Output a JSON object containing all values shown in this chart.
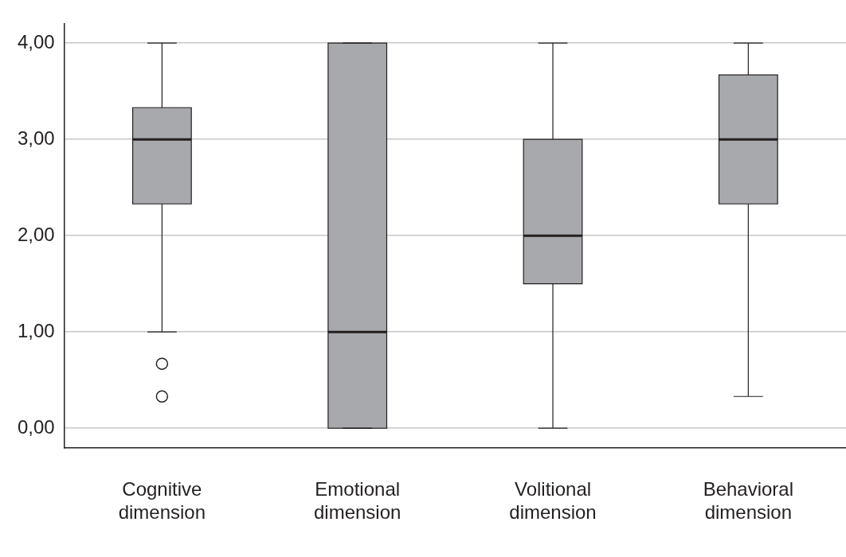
{
  "chart_data": {
    "type": "box",
    "categories": [
      "Cognitive dimension",
      "Emotional dimension",
      "Volitional dimension",
      "Behavioral dimension"
    ],
    "color": "#a7a9ac",
    "boxes": [
      {
        "low": 1,
        "q1": 2.33,
        "median": 3,
        "q3": 3.33,
        "high": 4,
        "outliers": [
          0.67,
          0.33
        ]
      },
      {
        "low": 0,
        "q1": 0,
        "median": 1,
        "q3": 4,
        "high": 4
      },
      {
        "low": 0,
        "q1": 1.5,
        "median": 2,
        "q3": 3,
        "high": 4
      },
      {
        "low": 0.33,
        "q1": 2.33,
        "median": 3,
        "q3": 3.67,
        "high": 4
      }
    ],
    "ylim": [
      -0.2,
      4.2
    ],
    "yticks": [
      {
        "value": 0,
        "label": "0,00"
      },
      {
        "value": 1,
        "label": "1,00"
      },
      {
        "value": 2,
        "label": "2,00"
      },
      {
        "value": 3,
        "label": "3,00"
      },
      {
        "value": 4,
        "label": "4,00"
      }
    ],
    "grid": "y",
    "legend": false
  }
}
